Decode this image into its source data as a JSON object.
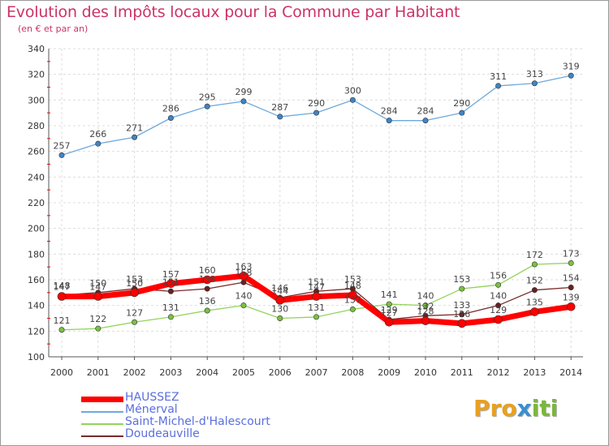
{
  "title": "Evolution des Impôts locaux pour la Commune par Habitant",
  "subtitle": "(en € et par an)",
  "logo": {
    "parts": [
      "Pro",
      "x",
      "iti"
    ],
    "colors": [
      "#e8a020",
      "#3a8fd0",
      "#7ab83a"
    ]
  },
  "chart_data": {
    "type": "line",
    "title": "Evolution des Impôts locaux pour la Commune par Habitant",
    "subtitle": "(en € et par an)",
    "x": [
      "2000",
      "2001",
      "2002",
      "2003",
      "2004",
      "2005",
      "2006",
      "2007",
      "2008",
      "2009",
      "2010",
      "2011",
      "2012",
      "2013",
      "2014"
    ],
    "ylim": [
      100,
      340
    ],
    "yticks": [
      "100",
      "120",
      "140",
      "160",
      "180",
      "200",
      "220",
      "240",
      "260",
      "280",
      "300",
      "320",
      "340"
    ],
    "grid": true,
    "legend": "bottom-left",
    "series": [
      {
        "name": "HAUSSEZ",
        "color": "#ff0000",
        "values": [
          147,
          147,
          150,
          157,
          160,
          163,
          144,
          147,
          148,
          127,
          128,
          126,
          129,
          135,
          139
        ],
        "labels": [
          "147",
          "147",
          "150",
          "157",
          "160",
          "163",
          "144",
          "147",
          "148",
          "127",
          "128",
          "126",
          "129",
          "135",
          "139"
        ]
      },
      {
        "name": "Ménerval",
        "color": "#6fa8dc",
        "values": [
          257,
          266,
          271,
          286,
          295,
          299,
          287,
          290,
          300,
          284,
          284,
          290,
          311,
          313,
          319
        ],
        "labels": [
          "257",
          "266",
          "271",
          "286",
          "295",
          "299",
          "287",
          "290",
          "300",
          "284",
          "284",
          "290",
          "311",
          "313",
          "319"
        ]
      },
      {
        "name": "Saint-Michel-d'Halescourt",
        "color": "#93d35a",
        "values": [
          121,
          122,
          127,
          131,
          136,
          140,
          130,
          131,
          137,
          141,
          140,
          153,
          156,
          172,
          173
        ],
        "labels": [
          "121",
          "122",
          "127",
          "131",
          "136",
          "140",
          "130",
          "131",
          "137",
          "141",
          "140",
          "153",
          "156",
          "172",
          "173"
        ]
      },
      {
        "name": "Doudeauville",
        "color": "#7a2a2a",
        "values": [
          148,
          150,
          153,
          151,
          153,
          158,
          146,
          151,
          153,
          129,
          132,
          133,
          140,
          152,
          154
        ],
        "labels": [
          "148",
          "150",
          "153",
          "151",
          "153",
          "158",
          "146",
          "151",
          "153",
          "129",
          "132",
          "133",
          "140",
          "152",
          "154"
        ]
      }
    ]
  }
}
